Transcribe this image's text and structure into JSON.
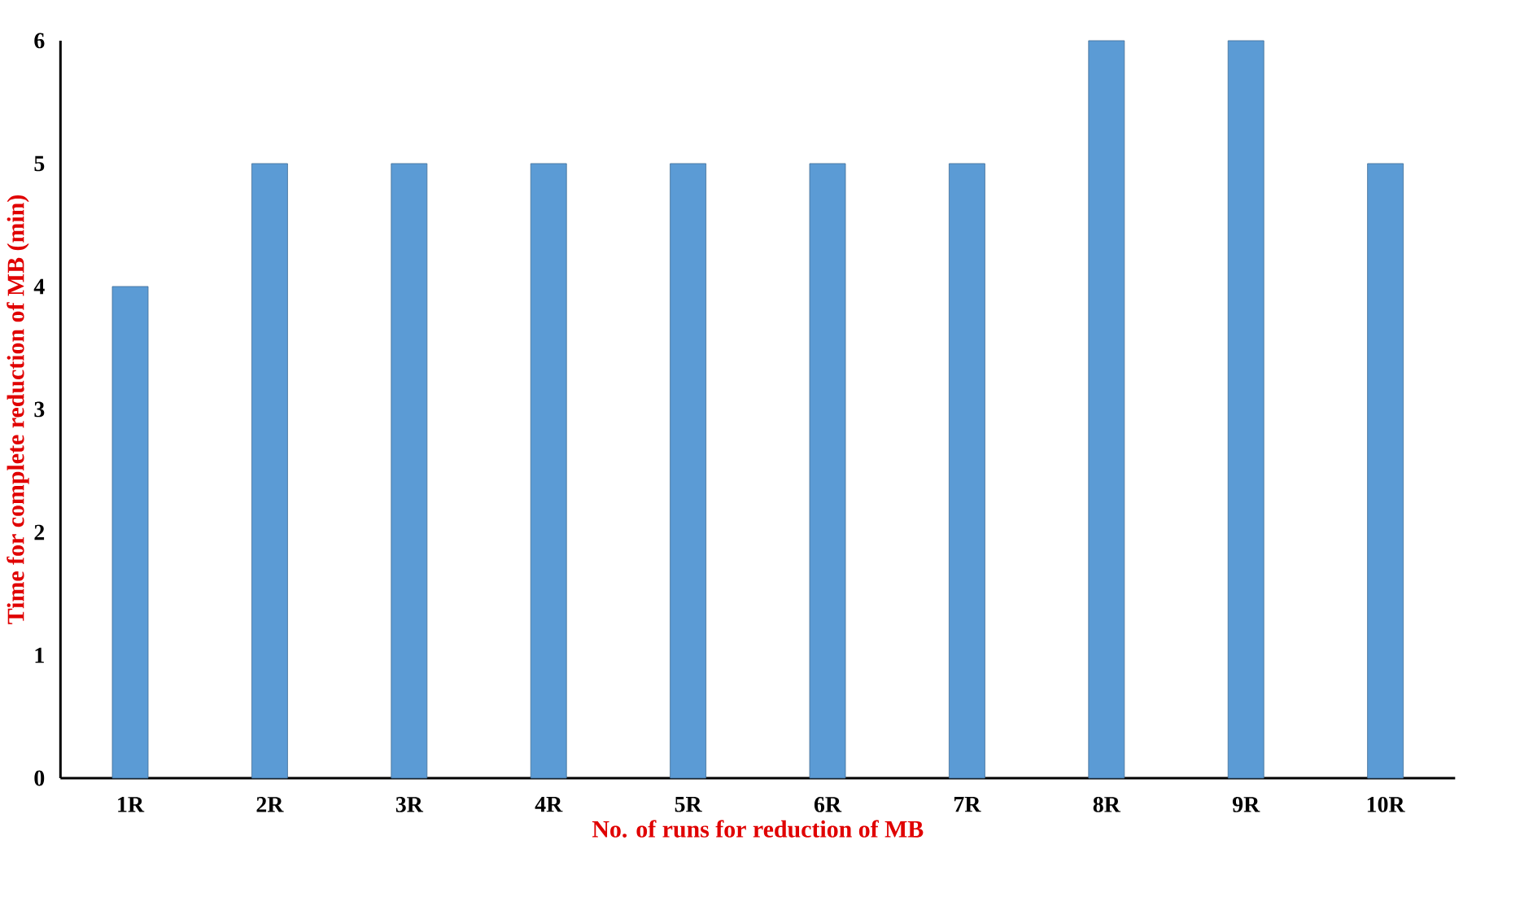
{
  "chart_data": {
    "type": "bar",
    "xlabel": "No. of runs for reduction of MB",
    "ylabel": "Time for complete reduction of MB (min)",
    "categories": [
      "1R",
      "2R",
      "3R",
      "4R",
      "5R",
      "6R",
      "7R",
      "8R",
      "9R",
      "10R"
    ],
    "values": [
      4,
      5,
      5,
      5,
      5,
      5,
      5,
      6,
      6,
      5
    ],
    "color": "#5b9bd5",
    "ylim": [
      0,
      6
    ],
    "yticks": [
      0,
      1,
      2,
      3,
      4,
      5,
      6
    ]
  }
}
